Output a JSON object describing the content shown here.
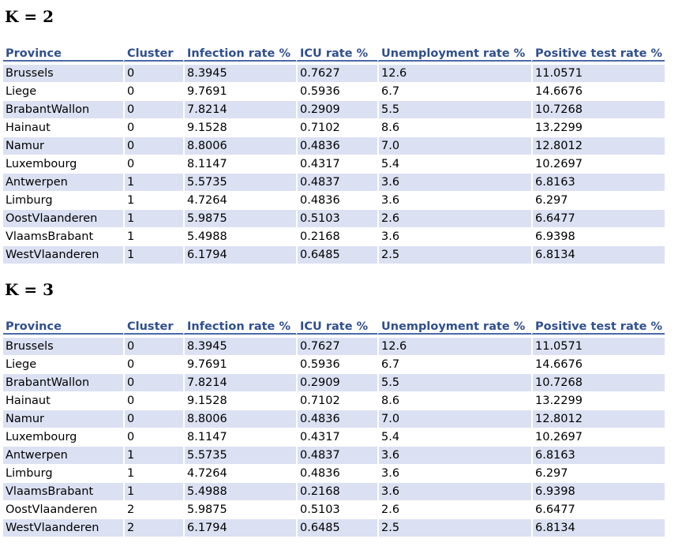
{
  "sections": [
    {
      "heading": "K = 2",
      "columns": [
        "Province",
        "Cluster",
        "Infection rate %",
        "ICU rate %",
        "Unemployment rate %",
        "Positive test rate %"
      ],
      "rows": [
        [
          "Brussels",
          "0",
          "8.3945",
          "0.7627",
          "12.6",
          "11.0571"
        ],
        [
          "Liege",
          "0",
          "9.7691",
          "0.5936",
          "6.7",
          "14.6676"
        ],
        [
          "BrabantWallon",
          "0",
          "7.8214",
          "0.2909",
          "5.5",
          "10.7268"
        ],
        [
          "Hainaut",
          "0",
          "9.1528",
          "0.7102",
          "8.6",
          "13.2299"
        ],
        [
          "Namur",
          "0",
          "8.8006",
          "0.4836",
          "7.0",
          "12.8012"
        ],
        [
          "Luxembourg",
          "0",
          "8.1147",
          "0.4317",
          "5.4",
          "10.2697"
        ],
        [
          "Antwerpen",
          "1",
          "5.5735",
          "0.4837",
          "3.6",
          "6.8163"
        ],
        [
          "Limburg",
          "1",
          "4.7264",
          "0.4836",
          "3.6",
          "6.297"
        ],
        [
          "OostVlaanderen",
          "1",
          "5.9875",
          "0.5103",
          "2.6",
          "6.6477"
        ],
        [
          "VlaamsBrabant",
          "1",
          "5.4988",
          "0.2168",
          "3.6",
          "6.9398"
        ],
        [
          "WestVlaanderen",
          "1",
          "6.1794",
          "0.6485",
          "2.5",
          "6.8134"
        ]
      ]
    },
    {
      "heading": "K = 3",
      "columns": [
        "Province",
        "Cluster",
        "Infection rate %",
        "ICU rate %",
        "Unemployment rate %",
        "Positive test rate %"
      ],
      "rows": [
        [
          "Brussels",
          "0",
          "8.3945",
          "0.7627",
          "12.6",
          "11.0571"
        ],
        [
          "Liege",
          "0",
          "9.7691",
          "0.5936",
          "6.7",
          "14.6676"
        ],
        [
          "BrabantWallon",
          "0",
          "7.8214",
          "0.2909",
          "5.5",
          "10.7268"
        ],
        [
          "Hainaut",
          "0",
          "9.1528",
          "0.7102",
          "8.6",
          "13.2299"
        ],
        [
          "Namur",
          "0",
          "8.8006",
          "0.4836",
          "7.0",
          "12.8012"
        ],
        [
          "Luxembourg",
          "0",
          "8.1147",
          "0.4317",
          "5.4",
          "10.2697"
        ],
        [
          "Antwerpen",
          "1",
          "5.5735",
          "0.4837",
          "3.6",
          "6.8163"
        ],
        [
          "Limburg",
          "1",
          "4.7264",
          "0.4836",
          "3.6",
          "6.297"
        ],
        [
          "VlaamsBrabant",
          "1",
          "5.4988",
          "0.2168",
          "3.6",
          "6.9398"
        ],
        [
          "OostVlaanderen",
          "2",
          "5.9875",
          "0.5103",
          "2.6",
          "6.6477"
        ],
        [
          "WestVlaanderen",
          "2",
          "6.1794",
          "0.6485",
          "2.5",
          "6.8134"
        ]
      ]
    }
  ]
}
